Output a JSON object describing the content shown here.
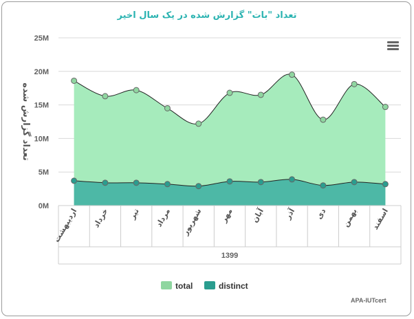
{
  "chart_data": {
    "type": "area",
    "title": "تعداد \"بات\" گزارش شده در یک سال اخیر",
    "ylabel": "تعداد گزارش شده",
    "group_label": "1399",
    "categories": [
      "اردیبهشت",
      "خرداد",
      "تیر",
      "مرداد",
      "شهریور",
      "مهر",
      "آبان",
      "آذر",
      "دی",
      "بهمن",
      "اسفند"
    ],
    "ylim": [
      0,
      25000000
    ],
    "yticks": [
      "0M",
      "5M",
      "10M",
      "15M",
      "20M",
      "25M"
    ],
    "grid": true,
    "legend_position": "bottom",
    "series": [
      {
        "name": "total",
        "color": "#a6ebbc",
        "marker_color": "#8fd6a0",
        "values": [
          18600000,
          16300000,
          17200000,
          14500000,
          12200000,
          16800000,
          16500000,
          19500000,
          12800000,
          18100000,
          14700000
        ]
      },
      {
        "name": "distinct",
        "color": "#4db8a6",
        "marker_color": "#2a9d8f",
        "values": [
          3700000,
          3400000,
          3400000,
          3200000,
          2900000,
          3600000,
          3500000,
          3900000,
          3000000,
          3500000,
          3200000
        ]
      }
    ]
  },
  "credit": "APA-IUTcert"
}
